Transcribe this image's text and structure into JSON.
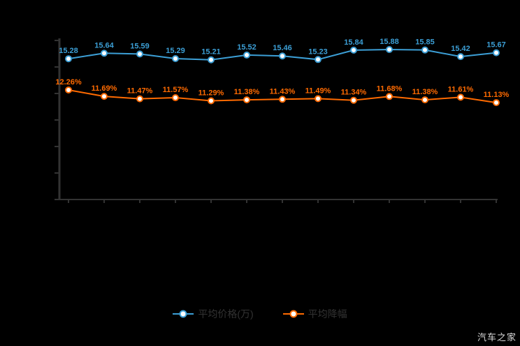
{
  "chart_data": {
    "type": "line",
    "title": "",
    "xlabel": "",
    "ylabel": "",
    "x_axis_labels_visible": false,
    "grid": false,
    "legend_position": "bottom",
    "background_color": "#000000",
    "axis_color": "#333333",
    "categories": [
      "1",
      "2",
      "3",
      "4",
      "5",
      "6",
      "7",
      "8",
      "9",
      "10",
      "11",
      "12",
      "13"
    ],
    "series": [
      {
        "name": "平均价格(万)",
        "color": "#3c9fd6",
        "marker": "hollow-circle",
        "label_suffix": "",
        "values": [
          15.28,
          15.64,
          15.59,
          15.29,
          15.21,
          15.52,
          15.46,
          15.23,
          15.84,
          15.88,
          15.85,
          15.42,
          15.67
        ]
      },
      {
        "name": "平均降幅",
        "color": "#ff6a00",
        "marker": "hollow-circle",
        "label_suffix": "%",
        "values": [
          12.26,
          11.69,
          11.47,
          11.57,
          11.29,
          11.38,
          11.43,
          11.49,
          11.34,
          11.68,
          11.38,
          11.61,
          11.13
        ]
      }
    ]
  },
  "legend": {
    "items": [
      {
        "label": "平均价格(万)",
        "color": "#3c9fd6"
      },
      {
        "label": "平均降幅",
        "color": "#ff6a00"
      }
    ]
  },
  "watermark": {
    "text": "汽车之家"
  }
}
